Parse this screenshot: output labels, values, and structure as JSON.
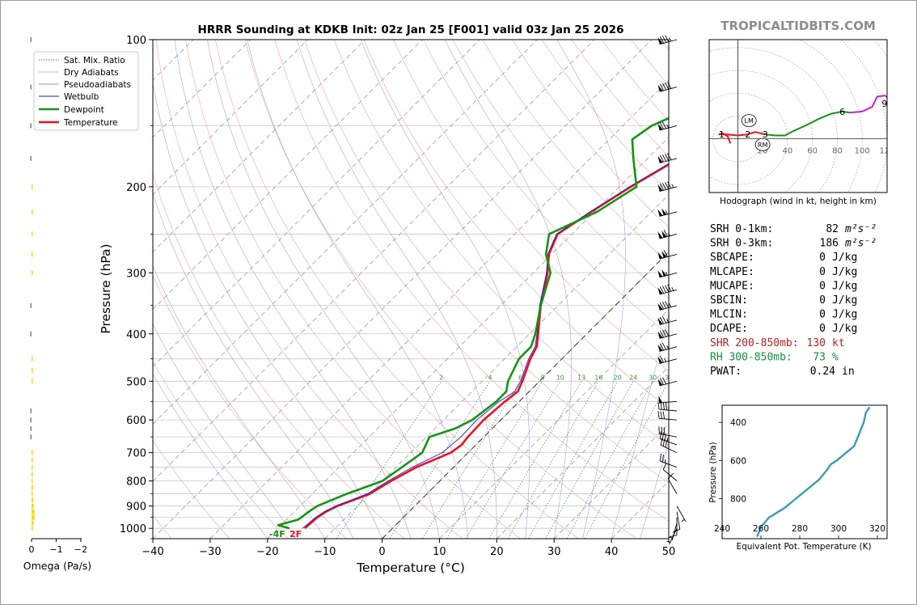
{
  "watermark": "TROPICALTIDBITS.COM",
  "chart_data": [
    {
      "type": "line",
      "title": "HRRR Sounding at KDKB Init: 02z Jan 25 [F001] valid 03z Jan 25 2026",
      "xlabel": "Temperature (°C)",
      "ylabel": "Pressure (hPa)",
      "xlim": [
        -40,
        50
      ],
      "ylim": [
        1050,
        100
      ],
      "y_scale": "log",
      "x_ticks": [
        "−40",
        "−30",
        "−20",
        "−10",
        "0",
        "10",
        "20",
        "30",
        "40",
        "50"
      ],
      "y_ticks": [
        "100",
        "200",
        "300",
        "400",
        "500",
        "600",
        "700",
        "800",
        "900",
        "1000"
      ],
      "grid": true,
      "legend_position": "upper-left",
      "legend": [
        "Sat. Mix. Ratio",
        "Dry Adiabats",
        "Pseudoadiabats",
        "Wetbulb",
        "Dewpoint",
        "Temperature"
      ],
      "mixing_ratio_labels": [
        "2",
        "4",
        "6",
        "8",
        "10",
        "13",
        "16",
        "20",
        "24",
        "30",
        "36"
      ],
      "surface_labels": {
        "dewpoint": "-4F",
        "temperature": "2F"
      },
      "series": [
        {
          "name": "Temperature",
          "color": "#e8141a",
          "points": [
            [
              1000,
              -15.3
            ],
            [
              950,
              -15.0
            ],
            [
              925,
              -14.5
            ],
            [
              900,
              -13.5
            ],
            [
              850,
              -10.0
            ],
            [
              800,
              -8.5
            ],
            [
              750,
              -6.5
            ],
            [
              700,
              -3.0
            ],
            [
              675,
              -2.5
            ],
            [
              650,
              -2.8
            ],
            [
              600,
              -3.0
            ],
            [
              550,
              -2.5
            ],
            [
              525,
              -2.0
            ],
            [
              500,
              -3.0
            ],
            [
              450,
              -5.5
            ],
            [
              425,
              -6.5
            ],
            [
              400,
              -8.5
            ],
            [
              350,
              -13.0
            ],
            [
              300,
              -17.5
            ],
            [
              275,
              -20.5
            ],
            [
              250,
              -22.5
            ],
            [
              225,
              -20.5
            ],
            [
              200,
              -18.0
            ],
            [
              175,
              -14.5
            ],
            [
              150,
              -10.0
            ],
            [
              140,
              -8.0
            ],
            [
              125,
              -7.5
            ],
            [
              100,
              -7.0
            ]
          ]
        },
        {
          "name": "Wetbulb",
          "color": "#1818d8",
          "points": [
            [
              1000,
              -15.7
            ],
            [
              950,
              -15.3
            ],
            [
              925,
              -14.8
            ],
            [
              900,
              -13.8
            ],
            [
              850,
              -10.4
            ],
            [
              800,
              -9.0
            ],
            [
              750,
              -7.2
            ],
            [
              700,
              -4.5
            ],
            [
              650,
              -4.0
            ],
            [
              600,
              -4.2
            ],
            [
              550,
              -3.5
            ],
            [
              525,
              -2.5
            ],
            [
              500,
              -3.3
            ],
            [
              450,
              -5.8
            ],
            [
              425,
              -6.8
            ],
            [
              400,
              -8.7
            ],
            [
              350,
              -13.2
            ],
            [
              300,
              -17.7
            ],
            [
              275,
              -20.7
            ],
            [
              250,
              -22.7
            ],
            [
              225,
              -20.7
            ],
            [
              200,
              -18.2
            ],
            [
              175,
              -14.8
            ],
            [
              150,
              -10.5
            ],
            [
              140,
              -8.3
            ],
            [
              125,
              -7.7
            ],
            [
              100,
              -7.2
            ]
          ]
        },
        {
          "name": "Dewpoint",
          "color": "#149414",
          "points": [
            [
              1000,
              -18.0
            ],
            [
              985,
              -20.5
            ],
            [
              960,
              -18.0
            ],
            [
              950,
              -17.8
            ],
            [
              925,
              -17.5
            ],
            [
              900,
              -17.0
            ],
            [
              850,
              -14.0
            ],
            [
              800,
              -10.0
            ],
            [
              750,
              -9.0
            ],
            [
              700,
              -8.0
            ],
            [
              650,
              -9.5
            ],
            [
              625,
              -6.5
            ],
            [
              600,
              -5.0
            ],
            [
              550,
              -4.0
            ],
            [
              525,
              -4.0
            ],
            [
              500,
              -5.5
            ],
            [
              450,
              -7.5
            ],
            [
              425,
              -7.5
            ],
            [
              400,
              -9.0
            ],
            [
              350,
              -13.0
            ],
            [
              300,
              -17.0
            ],
            [
              275,
              -21.0
            ],
            [
              250,
              -24.0
            ],
            [
              225,
              -19.5
            ],
            [
              200,
              -17.0
            ],
            [
              175,
              -22.5
            ],
            [
              160,
              -26.0
            ],
            [
              150,
              -25.0
            ],
            [
              125,
              -16.5
            ],
            [
              100,
              -8.5
            ]
          ]
        }
      ]
    },
    {
      "type": "scatter",
      "title": "Hodograph (wind in kt, height in km)",
      "xlim": [
        -23,
        120
      ],
      "ylim": [
        -47,
        87
      ],
      "ring_labels": [
        "20",
        "40",
        "60",
        "80",
        "100",
        "120"
      ],
      "height_labels": [
        {
          "label": "1",
          "u": -13,
          "v": 4
        },
        {
          "label": "2",
          "u": 8,
          "v": 4
        },
        {
          "label": "3",
          "u": 22,
          "v": 4
        },
        {
          "label": "6",
          "u": 84,
          "v": 24
        },
        {
          "label": "9",
          "u": 118,
          "v": 31
        }
      ],
      "storm_motion": [
        {
          "label": "LM",
          "u": 9,
          "v": 16
        },
        {
          "label": "RM",
          "u": 20,
          "v": -5
        }
      ],
      "segments": [
        {
          "color": "#e8141a",
          "points": [
            [
              -6,
              -4
            ],
            [
              -8,
              2
            ],
            [
              -12,
              5
            ],
            [
              -15,
              4
            ],
            [
              -9,
              4
            ],
            [
              0,
              3
            ],
            [
              8,
              4
            ],
            [
              14,
              6
            ],
            [
              18,
              5
            ],
            [
              22,
              4
            ]
          ]
        },
        {
          "color": "#149414",
          "points": [
            [
              22,
              4
            ],
            [
              30,
              3
            ],
            [
              38,
              3
            ],
            [
              45,
              7
            ],
            [
              55,
              12
            ],
            [
              66,
              18
            ],
            [
              75,
              22
            ],
            [
              84,
              24
            ],
            [
              90,
              23
            ]
          ]
        },
        {
          "color": "#c822c8",
          "points": [
            [
              90,
              23
            ],
            [
              100,
              24
            ],
            [
              108,
              28
            ],
            [
              112,
              37
            ],
            [
              118,
              38
            ],
            [
              124,
              34
            ]
          ]
        },
        {
          "color": "#1818d8",
          "points": [
            [
              124,
              34
            ],
            [
              128,
              29
            ],
            [
              133,
              24
            ],
            [
              137,
              20
            ]
          ]
        }
      ]
    },
    {
      "type": "line",
      "xlabel": "Equivalent Pot. Temperature (K)",
      "ylabel": "Pressure (hPa)",
      "xlim": [
        240,
        325
      ],
      "ylim": [
        1010,
        310
      ],
      "x_ticks": [
        "240",
        "260",
        "280",
        "300",
        "320"
      ],
      "y_ticks": [
        "400",
        "600",
        "800"
      ],
      "series": [
        {
          "color": "#3a9bb5",
          "points": [
            [
              1000,
              258
            ],
            [
              950,
              260
            ],
            [
              925,
              262
            ],
            [
              900,
              264
            ],
            [
              850,
              272
            ],
            [
              800,
              278
            ],
            [
              750,
              284
            ],
            [
              700,
              290
            ],
            [
              650,
              294
            ],
            [
              620,
              296
            ],
            [
              600,
              299
            ],
            [
              550,
              305
            ],
            [
              525,
              308
            ],
            [
              500,
              309
            ],
            [
              450,
              311
            ],
            [
              425,
              312
            ],
            [
              400,
              313
            ],
            [
              350,
              314
            ],
            [
              320,
              316
            ]
          ]
        }
      ]
    },
    {
      "type": "bar",
      "xlabel": "Omega (Pa/s)",
      "x_ticks": [
        "0",
        "−1",
        "−2"
      ],
      "xlim": [
        0,
        -2
      ],
      "series": [
        {
          "name": "upward",
          "color": "#ffd700",
          "points": [
            [
              1000,
              0.05
            ],
            [
              975,
              0.08
            ],
            [
              950,
              0.12
            ],
            [
              925,
              0.11
            ],
            [
              900,
              0.09
            ],
            [
              875,
              0.07
            ],
            [
              850,
              0.05
            ],
            [
              825,
              0.06
            ],
            [
              800,
              0.05
            ],
            [
              775,
              0.04
            ],
            [
              750,
              0.05
            ],
            [
              725,
              0.04
            ],
            [
              700,
              0.03
            ],
            [
              500,
              0.03
            ],
            [
              475,
              0.02
            ],
            [
              450,
              0.02
            ],
            [
              300,
              0.02
            ],
            [
              275,
              0.03
            ],
            [
              250,
              0.04
            ],
            [
              225,
              0.02
            ],
            [
              200,
              0.04
            ]
          ]
        },
        {
          "name": "downward",
          "color": "#808080",
          "points": [
            [
              650,
              -0.02
            ],
            [
              625,
              -0.02
            ],
            [
              600,
              -0.03
            ],
            [
              575,
              -0.02
            ],
            [
              400,
              -0.02
            ],
            [
              350,
              -0.01
            ],
            [
              175,
              -0.02
            ],
            [
              150,
              -0.05
            ],
            [
              125,
              -0.05
            ],
            [
              100,
              -0.01
            ]
          ]
        }
      ]
    }
  ],
  "barbs": [
    {
      "p": 1000,
      "dir": 205,
      "spd": 5
    },
    {
      "p": 975,
      "dir": 195,
      "spd": 5
    },
    {
      "p": 950,
      "dir": 180,
      "spd": 10
    },
    {
      "p": 925,
      "dir": 170,
      "spd": 10
    },
    {
      "p": 900,
      "dir": 150,
      "spd": 5
    },
    {
      "p": 850,
      "dir": 330,
      "spd": 10
    },
    {
      "p": 800,
      "dir": 310,
      "spd": 10
    },
    {
      "p": 750,
      "dir": 290,
      "spd": 25
    },
    {
      "p": 700,
      "dir": 295,
      "spd": 30
    },
    {
      "p": 675,
      "dir": 290,
      "spd": 35
    },
    {
      "p": 650,
      "dir": 280,
      "spd": 30
    },
    {
      "p": 600,
      "dir": 275,
      "spd": 30
    },
    {
      "p": 575,
      "dir": 275,
      "spd": 40
    },
    {
      "p": 550,
      "dir": 265,
      "spd": 50
    },
    {
      "p": 500,
      "dir": 255,
      "spd": 70
    },
    {
      "p": 450,
      "dir": 255,
      "spd": 65
    },
    {
      "p": 425,
      "dir": 255,
      "spd": 75
    },
    {
      "p": 400,
      "dir": 255,
      "spd": 80
    },
    {
      "p": 375,
      "dir": 255,
      "spd": 75
    },
    {
      "p": 350,
      "dir": 255,
      "spd": 85
    },
    {
      "p": 325,
      "dir": 255,
      "spd": 95
    },
    {
      "p": 300,
      "dir": 255,
      "spd": 105
    },
    {
      "p": 275,
      "dir": 255,
      "spd": 110
    },
    {
      "p": 250,
      "dir": 255,
      "spd": 115
    },
    {
      "p": 225,
      "dir": 255,
      "spd": 105
    },
    {
      "p": 200,
      "dir": 255,
      "spd": 95
    },
    {
      "p": 175,
      "dir": 255,
      "spd": 90
    },
    {
      "p": 150,
      "dir": 255,
      "spd": 75
    },
    {
      "p": 125,
      "dir": 255,
      "spd": 90
    },
    {
      "p": 100,
      "dir": 255,
      "spd": 85
    }
  ],
  "stats": [
    {
      "label": "SRH 0-1km:",
      "value": "82",
      "unit": "m²s⁻²",
      "color": "#000000"
    },
    {
      "label": "SRH 0-3km:",
      "value": "186",
      "unit": "m²s⁻²",
      "color": "#000000"
    },
    {
      "label": "SBCAPE:",
      "value": "0",
      "unit": "J/kg",
      "color": "#000000"
    },
    {
      "label": "MLCAPE:",
      "value": "0",
      "unit": "J/kg",
      "color": "#000000"
    },
    {
      "label": "MUCAPE:",
      "value": "0",
      "unit": "J/kg",
      "color": "#000000"
    },
    {
      "label": "SBCIN:",
      "value": "0",
      "unit": "J/kg",
      "color": "#000000"
    },
    {
      "label": "MLCIN:",
      "value": "0",
      "unit": "J/kg",
      "color": "#000000"
    },
    {
      "label": "DCAPE:",
      "value": "0",
      "unit": "J/kg",
      "color": "#000000"
    },
    {
      "label": "SHR 200-850mb:",
      "value": "130",
      "unit": "kt",
      "color": "#b22222"
    },
    {
      "label": "RH 300-850mb:",
      "value": "73",
      "unit": "%",
      "color": "#138d3c"
    },
    {
      "label": "PWAT:",
      "value": "0.24",
      "unit": "in",
      "color": "#000000"
    }
  ],
  "colors": {
    "temperature": "#e8141a",
    "dewpoint": "#149414",
    "wetbulb": "#1818d8",
    "theta_e": "#3a9bb5",
    "omega_up": "#ffd700",
    "omega_down": "#808080",
    "watermark": "#8c8c8c"
  }
}
